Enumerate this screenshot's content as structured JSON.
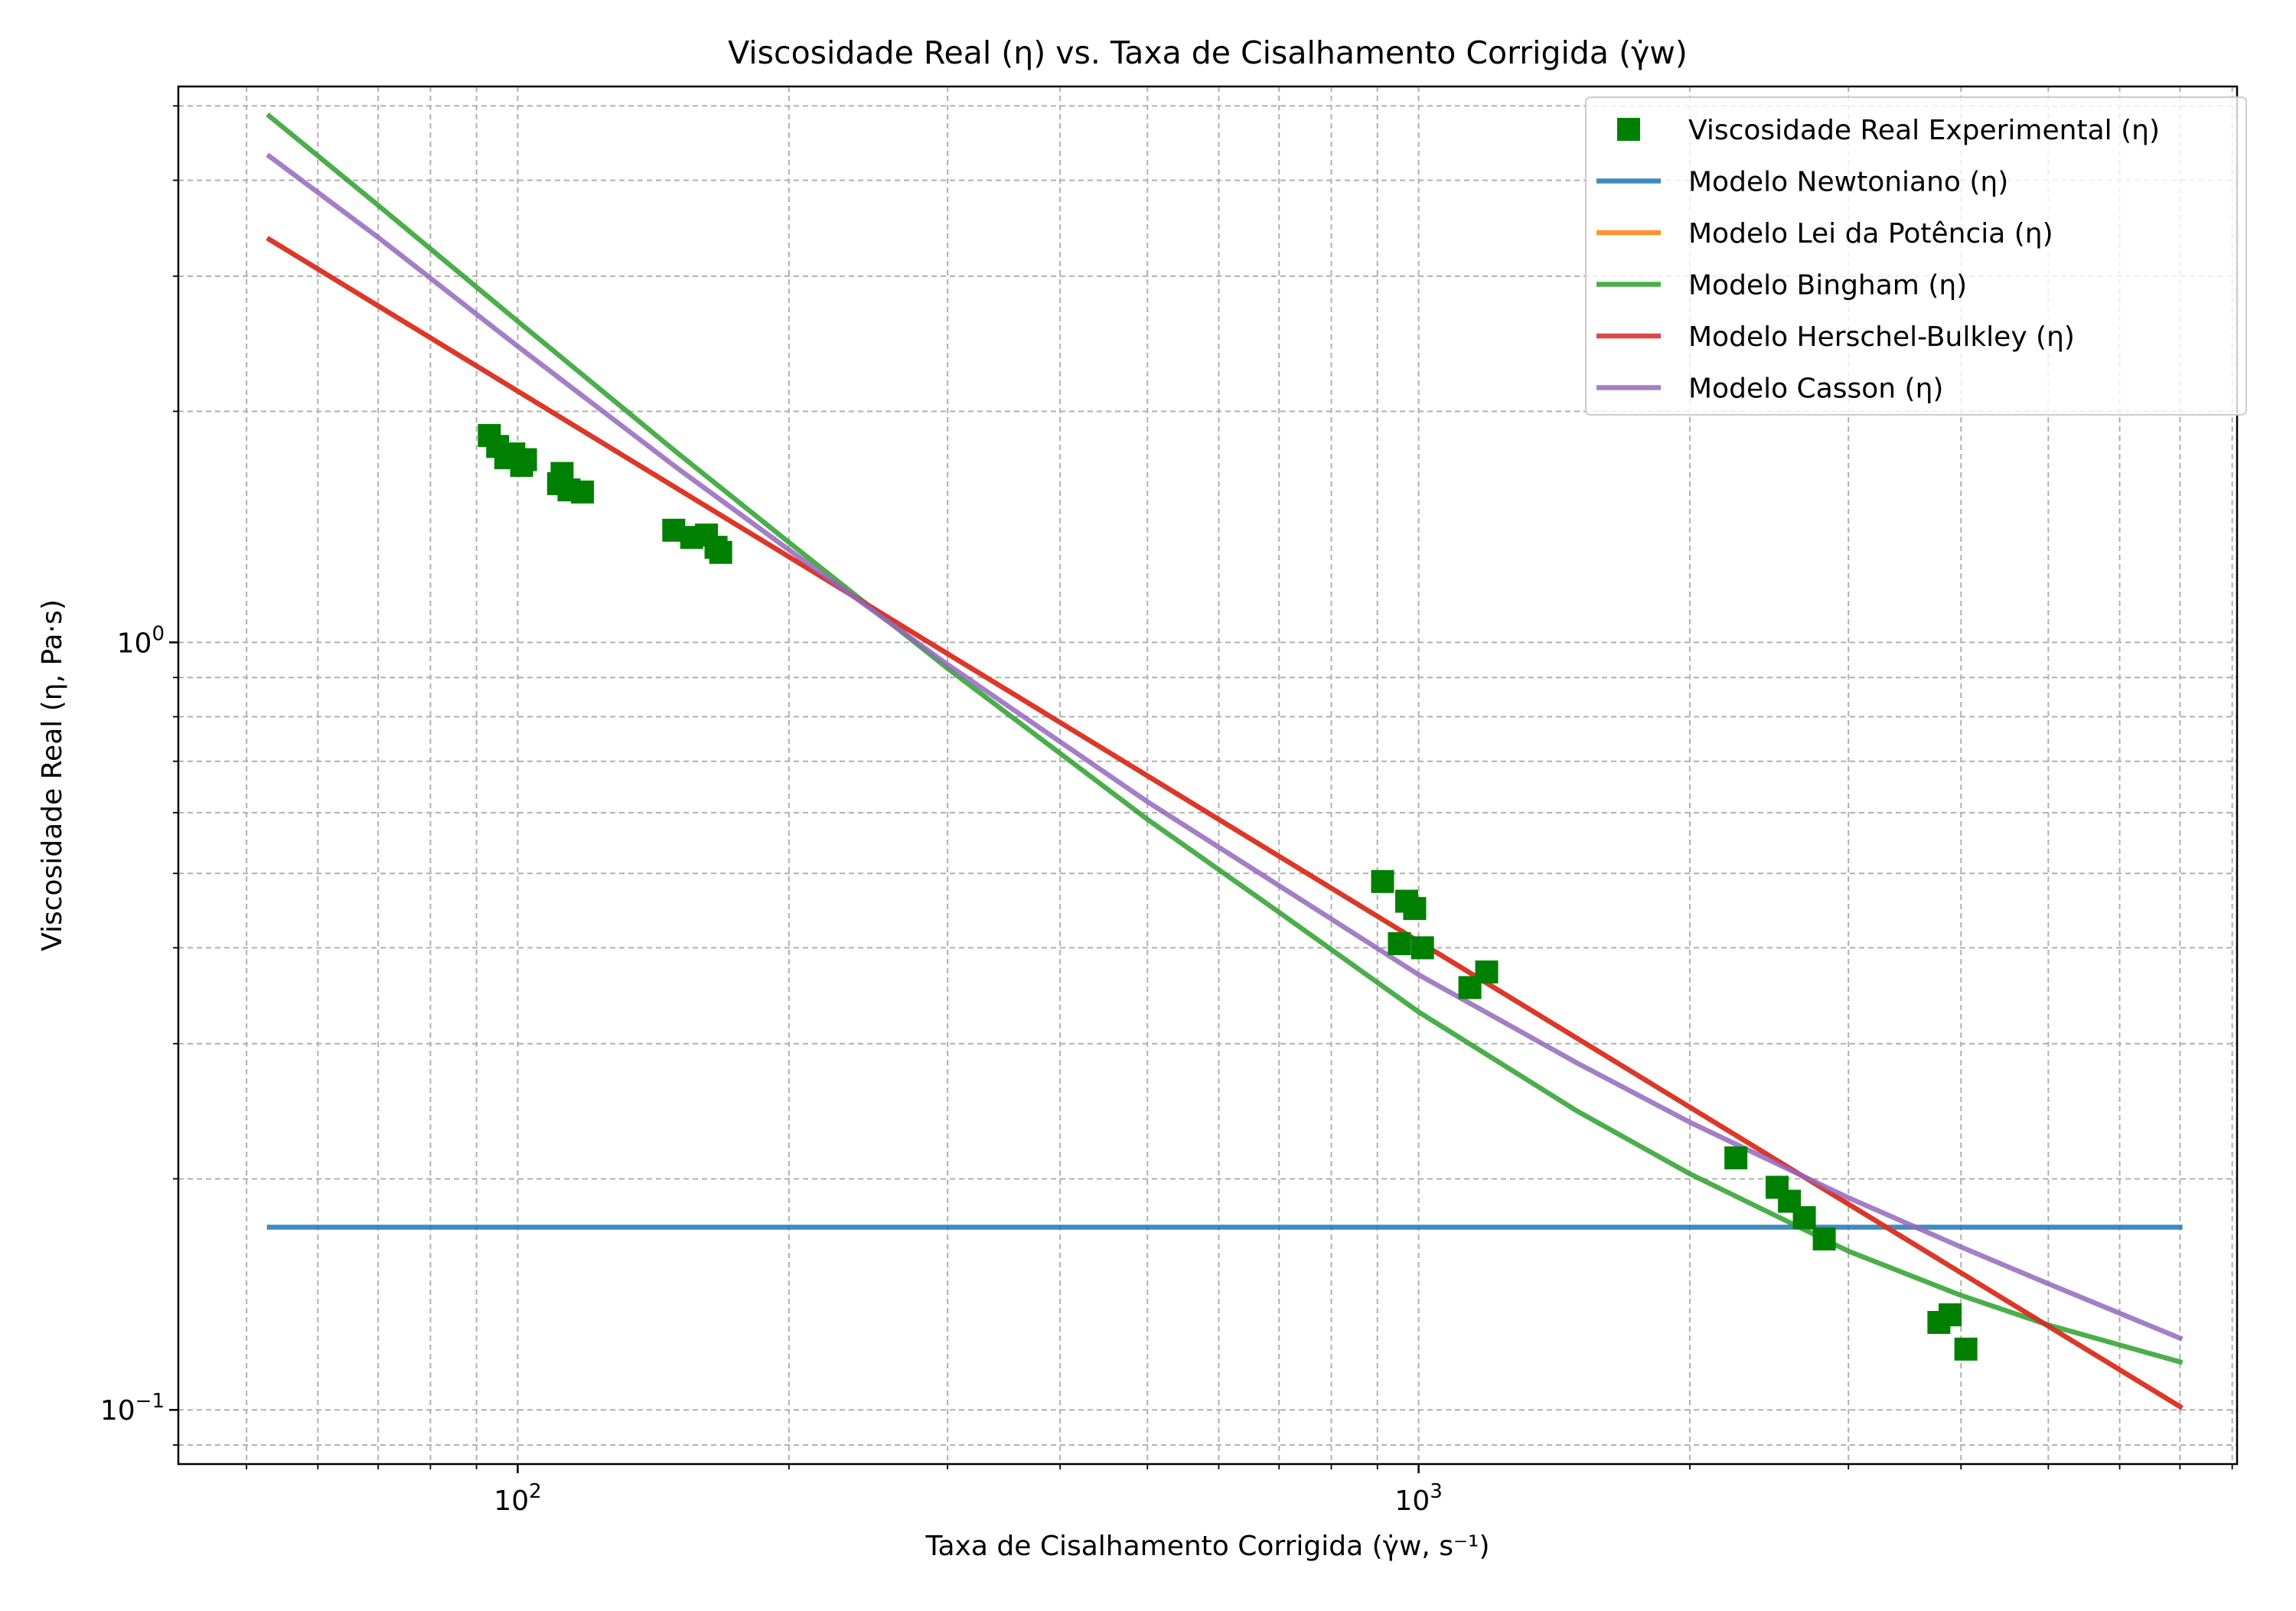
{
  "chart_data": {
    "type": "line",
    "title": "Viscosidade Real (η) vs. Taxa de Cisalhamento Corrigida (γ̇w)",
    "xlabel": "Taxa de Cisalhamento Corrigida (γ̇w, s⁻¹)",
    "ylabel": "Viscosidade Real (η, Pa·s)",
    "xscale": "log",
    "yscale": "log",
    "xlim": [
      42,
      8100
    ],
    "ylim": [
      0.085,
      5.3
    ],
    "grid": "major and minor, dashed",
    "legend_position": "top-right",
    "x_major_ticks": [
      {
        "value": 100,
        "base": "10",
        "exp": "2"
      },
      {
        "value": 1000,
        "base": "10",
        "exp": "3"
      }
    ],
    "y_major_ticks": [
      {
        "value": 0.1,
        "base": "10",
        "exp": "−1"
      },
      {
        "value": 1,
        "base": "10",
        "exp": "0"
      }
    ],
    "scatter": {
      "name": "Viscosidade Real Experimental (η)",
      "color": "#008000",
      "marker": "square",
      "points": [
        [
          93,
          1.86
        ],
        [
          95,
          1.8
        ],
        [
          97,
          1.74
        ],
        [
          99,
          1.76
        ],
        [
          101,
          1.7
        ],
        [
          102,
          1.73
        ],
        [
          111,
          1.61
        ],
        [
          112,
          1.66
        ],
        [
          114,
          1.58
        ],
        [
          118,
          1.57
        ],
        [
          149,
          1.4
        ],
        [
          156,
          1.37
        ],
        [
          162,
          1.38
        ],
        [
          166,
          1.33
        ],
        [
          168,
          1.31
        ],
        [
          912,
          0.488
        ],
        [
          952,
          0.405
        ],
        [
          970,
          0.46
        ],
        [
          990,
          0.45
        ],
        [
          1010,
          0.4
        ],
        [
          1140,
          0.355
        ],
        [
          1190,
          0.372
        ],
        [
          2250,
          0.213
        ],
        [
          2500,
          0.195
        ],
        [
          2580,
          0.187
        ],
        [
          2680,
          0.178
        ],
        [
          2820,
          0.167
        ],
        [
          3780,
          0.13
        ],
        [
          3890,
          0.133
        ],
        [
          4050,
          0.12
        ]
      ]
    },
    "series": [
      {
        "name": "Modelo Newtoniano (η)",
        "color": "#1f77b4",
        "x": [
          53,
          7000
        ],
        "y": [
          0.173,
          0.173
        ]
      },
      {
        "name": "Modelo Lei da Potência (η)",
        "color": "#ff7f0e",
        "x": [
          53,
          7000
        ],
        "y": [
          3.35,
          0.101
        ]
      },
      {
        "name": "Modelo Bingham (η)",
        "color": "#2ca02c",
        "x": [
          53,
          70,
          100,
          150,
          200,
          300,
          500,
          700,
          1000,
          1500,
          2000,
          3000,
          4000,
          5000,
          7000
        ],
        "y": [
          4.85,
          3.71,
          2.62,
          1.77,
          1.35,
          0.925,
          0.588,
          0.445,
          0.33,
          0.245,
          0.203,
          0.161,
          0.141,
          0.129,
          0.1155
        ]
      },
      {
        "name": "Modelo Herschel-Bulkley (η)",
        "color": "#d62728",
        "x": [
          53,
          7000
        ],
        "y": [
          3.35,
          0.101
        ]
      },
      {
        "name": "Modelo Casson (η)",
        "color": "#9467bd",
        "x": [
          53,
          70,
          100,
          150,
          200,
          300,
          500,
          700,
          1000,
          1500,
          2000,
          3000,
          4000,
          5000,
          7000
        ],
        "y": [
          4.3,
          3.37,
          2.43,
          1.69,
          1.32,
          0.936,
          0.62,
          0.482,
          0.369,
          0.283,
          0.237,
          0.189,
          0.163,
          0.146,
          0.124
        ]
      }
    ]
  }
}
